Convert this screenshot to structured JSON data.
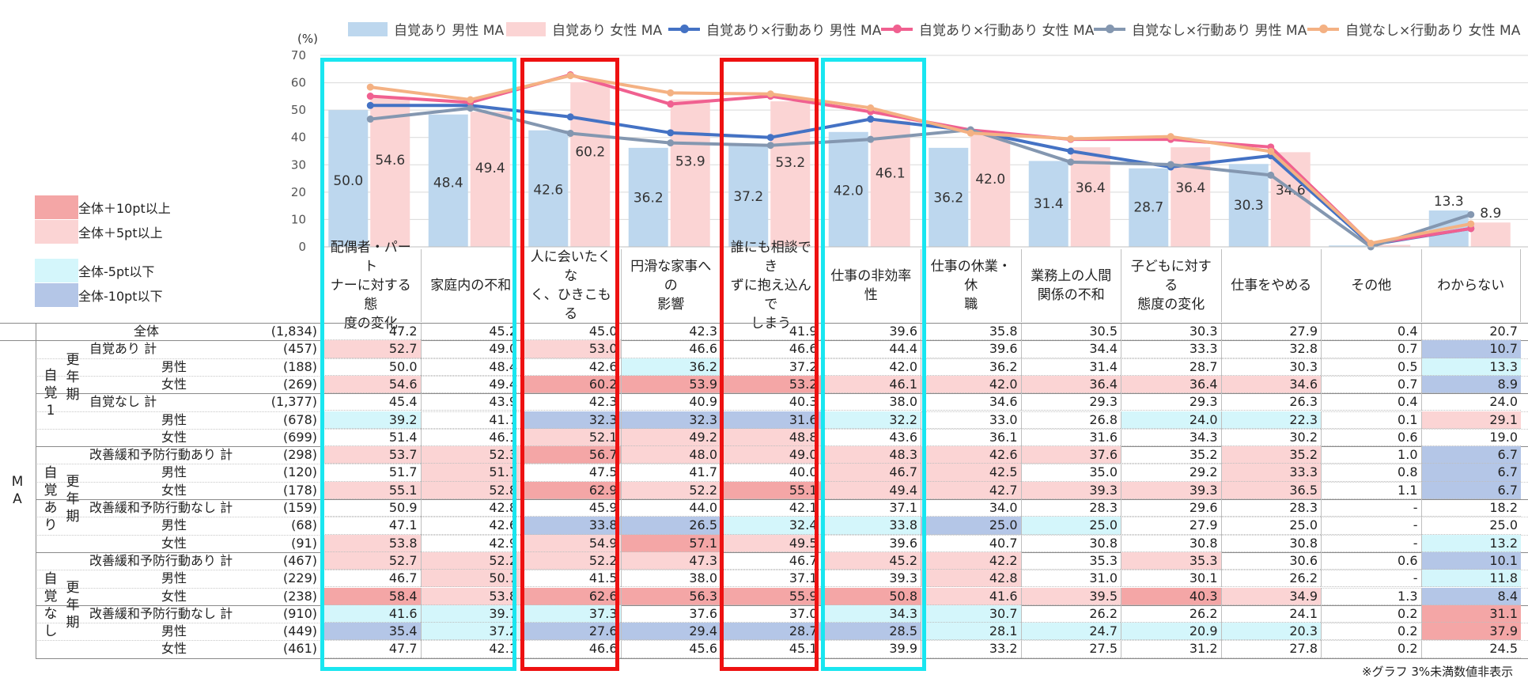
{
  "chart_data": {
    "type": "bar+line",
    "unit_label": "(%)",
    "ylim": [
      0,
      70
    ],
    "yticks": [
      0,
      10,
      20,
      30,
      40,
      50,
      60,
      70
    ],
    "categories": [
      "配偶者・パート\nナーに対する態\n度の変化",
      "家庭内の不和",
      "人に会いたくな\nく、ひきこもる",
      "円滑な家事への\n影響",
      "誰にも相談でき\nずに抱え込んで\nしまう",
      "仕事の非効率\n性",
      "仕事の休業・休\n職",
      "業務上の人間\n関係の不和",
      "子どもに対する\n態度の変化",
      "仕事をやめる",
      "その他",
      "わからない"
    ],
    "bar_series": [
      {
        "name": "自覚あり 男性 MA",
        "color": "#bdd7ee",
        "values": [
          50.0,
          48.4,
          42.6,
          36.2,
          37.2,
          42.0,
          36.2,
          31.4,
          28.7,
          30.3,
          0.5,
          13.3
        ],
        "labels": [
          "50.0",
          "48.4",
          "42.6",
          "36.2",
          "37.2",
          "42.0",
          "36.2",
          "31.4",
          "28.7",
          "30.3",
          "",
          "13.3"
        ]
      },
      {
        "name": "自覚あり 女性 MA",
        "color": "#fbd4d4",
        "values": [
          54.6,
          49.4,
          60.2,
          53.9,
          53.2,
          46.1,
          42.0,
          36.4,
          36.4,
          34.6,
          0.7,
          8.9
        ],
        "labels": [
          "54.6",
          "49.4",
          "60.2",
          "53.9",
          "53.2",
          "46.1",
          "42.0",
          "36.4",
          "36.4",
          "34.6",
          "",
          "8.9"
        ]
      }
    ],
    "line_series": [
      {
        "name": "自覚あり×行動あり 男性 MA",
        "color": "#4472c4",
        "values": [
          51.7,
          51.7,
          47.5,
          41.7,
          40.0,
          46.7,
          42.5,
          35.0,
          29.2,
          33.3,
          0.8,
          6.7
        ]
      },
      {
        "name": "自覚あり×行動あり 女性 MA",
        "color": "#f06090",
        "values": [
          55.1,
          52.8,
          62.9,
          52.2,
          55.1,
          49.4,
          42.7,
          39.3,
          39.3,
          36.5,
          1.1,
          6.7
        ]
      },
      {
        "name": "自覚なし×行動あり 男性 MA",
        "color": "#8497b0",
        "values": [
          46.7,
          50.7,
          41.5,
          38.0,
          37.1,
          39.3,
          42.8,
          31.0,
          30.1,
          26.2,
          0.0,
          11.8
        ]
      },
      {
        "name": "自覚なし×行動あり 女性 MA",
        "color": "#f4b183",
        "values": [
          58.4,
          53.8,
          62.6,
          56.3,
          55.9,
          50.8,
          41.6,
          39.5,
          40.3,
          34.9,
          1.3,
          8.4
        ]
      }
    ]
  },
  "key_legend": [
    {
      "label": "全体＋10pt以上",
      "color": "#f4a6a6"
    },
    {
      "label": "全体＋5pt以上",
      "color": "#fbd4d4"
    },
    {
      "label": "全体-5pt以下",
      "color": "#d4f6fb"
    },
    {
      "label": "全体-10pt以下",
      "color": "#b4c6e7"
    }
  ],
  "table": {
    "section_label": "M\nA",
    "group_labels": [
      {
        "outer": "自\n覚\n1",
        "inner": "更\n年\n期"
      },
      {
        "outer": "自\n覚\nあ\nり",
        "inner": "更\n年\n期"
      },
      {
        "outer": "自\n覚\nな\nし",
        "inner": "更\n年\n期"
      }
    ],
    "rows": [
      {
        "label": "全体",
        "n": "(1,834)",
        "vals": [
          "47.2",
          "45.2",
          "45.0",
          "42.3",
          "41.9",
          "39.6",
          "35.8",
          "30.5",
          "30.3",
          "27.9",
          "0.4",
          "20.7"
        ],
        "hl": [
          "",
          "",
          "",
          "",
          "",
          "",
          "",
          "",
          "",
          "",
          "",
          ""
        ]
      },
      {
        "label": "自覚あり  計",
        "n": "(457)",
        "vals": [
          "52.7",
          "49.0",
          "53.0",
          "46.6",
          "46.6",
          "44.4",
          "39.6",
          "34.4",
          "33.3",
          "32.8",
          "0.7",
          "10.7"
        ],
        "hl": [
          "p5",
          "",
          "p5",
          "",
          "",
          "",
          "",
          "",
          "",
          "",
          "",
          "m10"
        ]
      },
      {
        "label": "男性",
        "n": "(188)",
        "vals": [
          "50.0",
          "48.4",
          "42.6",
          "36.2",
          "37.2",
          "42.0",
          "36.2",
          "31.4",
          "28.7",
          "30.3",
          "0.5",
          "13.3"
        ],
        "hl": [
          "",
          "",
          "",
          "m5",
          "",
          "",
          "",
          "",
          "",
          "",
          "",
          "m5"
        ]
      },
      {
        "label": "女性",
        "n": "(269)",
        "vals": [
          "54.6",
          "49.4",
          "60.2",
          "53.9",
          "53.2",
          "46.1",
          "42.0",
          "36.4",
          "36.4",
          "34.6",
          "0.7",
          "8.9"
        ],
        "hl": [
          "p5",
          "",
          "p10",
          "p10",
          "p10",
          "p5",
          "p5",
          "p5",
          "p5",
          "p5",
          "",
          "m10"
        ]
      },
      {
        "label": "自覚なし  計",
        "n": "(1,377)",
        "vals": [
          "45.4",
          "43.9",
          "42.3",
          "40.9",
          "40.3",
          "38.0",
          "34.6",
          "29.3",
          "29.3",
          "26.3",
          "0.4",
          "24.0"
        ],
        "hl": [
          "",
          "",
          "",
          "",
          "",
          "",
          "",
          "",
          "",
          "",
          "",
          ""
        ]
      },
      {
        "label": "男性",
        "n": "(678)",
        "vals": [
          "39.2",
          "41.7",
          "32.3",
          "32.3",
          "31.6",
          "32.2",
          "33.0",
          "26.8",
          "24.0",
          "22.3",
          "0.1",
          "29.1"
        ],
        "hl": [
          "m5",
          "",
          "m10",
          "m10",
          "m10",
          "m5",
          "",
          "",
          "m5",
          "m5",
          "",
          "p5"
        ]
      },
      {
        "label": "女性",
        "n": "(699)",
        "vals": [
          "51.4",
          "46.1",
          "52.1",
          "49.2",
          "48.8",
          "43.6",
          "36.1",
          "31.6",
          "34.3",
          "30.2",
          "0.6",
          "19.0"
        ],
        "hl": [
          "",
          "",
          "p5",
          "p5",
          "p5",
          "",
          "",
          "",
          "",
          "",
          "",
          ""
        ]
      },
      {
        "label": "改善緩和予防行動あり 計",
        "n": "(298)",
        "vals": [
          "53.7",
          "52.3",
          "56.7",
          "48.0",
          "49.0",
          "48.3",
          "42.6",
          "37.6",
          "35.2",
          "35.2",
          "1.0",
          "6.7"
        ],
        "hl": [
          "p5",
          "p5",
          "p10",
          "p5",
          "p5",
          "p5",
          "p5",
          "p5",
          "",
          "p5",
          "",
          "m10"
        ]
      },
      {
        "label": "男性",
        "n": "(120)",
        "vals": [
          "51.7",
          "51.7",
          "47.5",
          "41.7",
          "40.0",
          "46.7",
          "42.5",
          "35.0",
          "29.2",
          "33.3",
          "0.8",
          "6.7"
        ],
        "hl": [
          "",
          "p5",
          "",
          "",
          "",
          "p5",
          "p5",
          "",
          "",
          "p5",
          "",
          "m10"
        ]
      },
      {
        "label": "女性",
        "n": "(178)",
        "vals": [
          "55.1",
          "52.8",
          "62.9",
          "52.2",
          "55.1",
          "49.4",
          "42.7",
          "39.3",
          "39.3",
          "36.5",
          "1.1",
          "6.7"
        ],
        "hl": [
          "p5",
          "p5",
          "p10",
          "p5",
          "p10",
          "p5",
          "p5",
          "p5",
          "p5",
          "p5",
          "",
          "m10"
        ]
      },
      {
        "label": "改善緩和予防行動なし 計",
        "n": "(159)",
        "vals": [
          "50.9",
          "42.8",
          "45.9",
          "44.0",
          "42.1",
          "37.1",
          "34.0",
          "28.3",
          "29.6",
          "28.3",
          "-",
          "18.2"
        ],
        "hl": [
          "",
          "",
          "",
          "",
          "",
          "",
          "",
          "",
          "",
          "",
          "",
          ""
        ]
      },
      {
        "label": "男性",
        "n": "(68)",
        "vals": [
          "47.1",
          "42.6",
          "33.8",
          "26.5",
          "32.4",
          "33.8",
          "25.0",
          "25.0",
          "27.9",
          "25.0",
          "-",
          "25.0"
        ],
        "hl": [
          "",
          "",
          "m10",
          "m10",
          "m5",
          "m5",
          "m10",
          "m5",
          "",
          "",
          "",
          ""
        ]
      },
      {
        "label": "女性",
        "n": "(91)",
        "vals": [
          "53.8",
          "42.9",
          "54.9",
          "57.1",
          "49.5",
          "39.6",
          "40.7",
          "30.8",
          "30.8",
          "30.8",
          "-",
          "13.2"
        ],
        "hl": [
          "p5",
          "",
          "p5",
          "p10",
          "p5",
          "",
          "",
          "",
          "",
          "",
          "",
          "m5"
        ]
      },
      {
        "label": "改善緩和予防行動あり 計",
        "n": "(467)",
        "vals": [
          "52.7",
          "52.2",
          "52.2",
          "47.3",
          "46.7",
          "45.2",
          "42.2",
          "35.3",
          "35.3",
          "30.6",
          "0.6",
          "10.1"
        ],
        "hl": [
          "p5",
          "p5",
          "p5",
          "p5",
          "",
          "p5",
          "p5",
          "",
          "p5",
          "",
          "",
          "m10"
        ]
      },
      {
        "label": "男性",
        "n": "(229)",
        "vals": [
          "46.7",
          "50.7",
          "41.5",
          "38.0",
          "37.1",
          "39.3",
          "42.8",
          "31.0",
          "30.1",
          "26.2",
          "-",
          "11.8"
        ],
        "hl": [
          "",
          "p5",
          "",
          "",
          "",
          "",
          "p5",
          "",
          "",
          "",
          "",
          "m5"
        ]
      },
      {
        "label": "女性",
        "n": "(238)",
        "vals": [
          "58.4",
          "53.8",
          "62.6",
          "56.3",
          "55.9",
          "50.8",
          "41.6",
          "39.5",
          "40.3",
          "34.9",
          "1.3",
          "8.4"
        ],
        "hl": [
          "p10",
          "p5",
          "p10",
          "p10",
          "p10",
          "p10",
          "p5",
          "p5",
          "p10",
          "p5",
          "",
          "m10"
        ]
      },
      {
        "label": "改善緩和予防行動なし 計",
        "n": "(910)",
        "vals": [
          "41.6",
          "39.7",
          "37.3",
          "37.6",
          "37.0",
          "34.3",
          "30.7",
          "26.2",
          "26.2",
          "24.1",
          "0.2",
          "31.1"
        ],
        "hl": [
          "m5",
          "m5",
          "m5",
          "",
          "",
          "m5",
          "m5",
          "",
          "",
          "",
          "",
          "p10"
        ]
      },
      {
        "label": "男性",
        "n": "(449)",
        "vals": [
          "35.4",
          "37.2",
          "27.6",
          "29.4",
          "28.7",
          "28.5",
          "28.1",
          "24.7",
          "20.9",
          "20.3",
          "0.2",
          "37.9"
        ],
        "hl": [
          "m10",
          "m5",
          "m10",
          "m10",
          "m10",
          "m10",
          "m5",
          "m5",
          "m5",
          "m5",
          "",
          "p10"
        ]
      },
      {
        "label": "女性",
        "n": "(461)",
        "vals": [
          "47.7",
          "42.1",
          "46.6",
          "45.6",
          "45.1",
          "39.9",
          "33.2",
          "27.5",
          "31.2",
          "27.8",
          "0.2",
          "24.5"
        ],
        "hl": [
          "",
          "",
          "",
          "",
          "",
          "",
          "",
          "",
          "",
          "",
          "",
          ""
        ]
      }
    ]
  },
  "footnote": "※グラフ 3%未満数値非表示"
}
